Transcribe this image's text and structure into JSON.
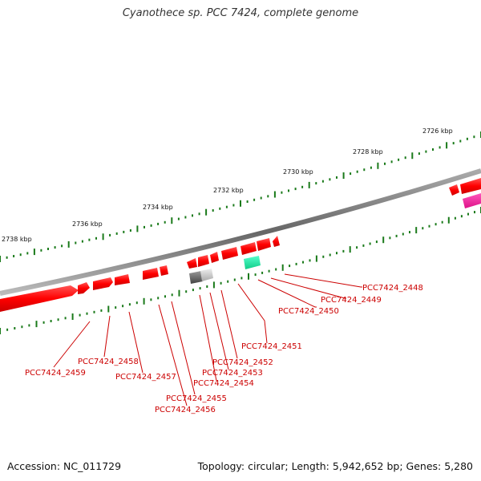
{
  "title": "Cyanothece sp. PCC 7424, complete genome",
  "footer": {
    "accession": "Accession: NC_011729",
    "topology": "Topology: circular; Length: 5,942,652 bp; Genes: 5,280"
  },
  "scale_labels": [
    "2726 kbp",
    "2728 kbp",
    "2730 kbp",
    "2732 kbp",
    "2734 kbp",
    "2736 kbp",
    "2738 kbp"
  ],
  "gene_labels": [
    "PCC7424_2448",
    "PCC7424_2449",
    "PCC7424_2450",
    "PCC7424_2451",
    "PCC7424_2452",
    "PCC7424_2453",
    "PCC7424_2454",
    "PCC7424_2455",
    "PCC7424_2456",
    "PCC7424_2457",
    "PCC7424_2458",
    "PCC7424_2459"
  ],
  "colors": {
    "cds": "#ff0000",
    "trna": "#33ffbb",
    "rrna": "#ff33aa",
    "misc_gray": "#888888",
    "tick": "#1a7a1a",
    "label": "#cc0000",
    "backbone": "#777777"
  }
}
